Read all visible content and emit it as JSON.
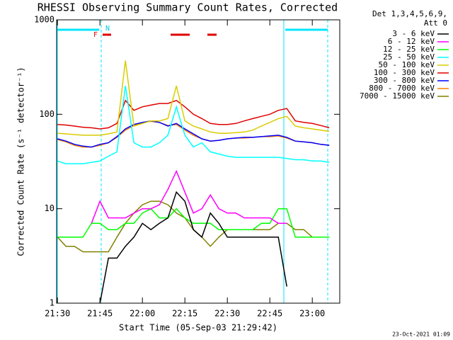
{
  "chart_data": {
    "type": "line",
    "title": "RHESSI Observing Summary Count Rates, Corrected",
    "x_label": "Start Time (05-Sep-03 21:29:42)",
    "y_label": "Corrected Count Rate (s⁻¹ detector⁻¹)",
    "legend_header": [
      "Det 1,3,4,5,6,9,",
      "Att 0"
    ],
    "annotations": [
      "N",
      "F"
    ],
    "timestamp": "23-Oct-2021 01:09",
    "log_y": true,
    "legend": "right",
    "xlim": [
      -0.3,
      99.7
    ],
    "xticks": [
      {
        "value": 0,
        "label": "21:30"
      },
      {
        "value": 15,
        "label": "21:45"
      },
      {
        "value": 30,
        "label": "22:00"
      },
      {
        "value": 45,
        "label": "22:15"
      },
      {
        "value": 60,
        "label": "22:30"
      },
      {
        "value": 75,
        "label": "22:45"
      },
      {
        "value": 90,
        "label": "23:00"
      }
    ],
    "ylim": [
      1,
      1000
    ],
    "yticks": [
      1,
      10,
      100,
      1000
    ],
    "x": [
      0,
      3,
      6,
      9,
      12,
      15,
      18,
      21,
      24,
      27,
      30,
      33,
      36,
      39,
      42,
      45,
      48,
      51,
      54,
      57,
      60,
      63,
      66,
      69,
      72,
      75,
      78,
      81,
      84,
      87,
      90,
      93,
      96
    ],
    "series": [
      {
        "name": "3 - 6 keV",
        "color": "#000000",
        "values": [
          null,
          null,
          null,
          null,
          null,
          1,
          3,
          3,
          4,
          5,
          7,
          6,
          7,
          8,
          15,
          12,
          6,
          5,
          9,
          7,
          5,
          5,
          5,
          5,
          5,
          5,
          5,
          1.5,
          null,
          null,
          null,
          null,
          null
        ]
      },
      {
        "name": "6 - 12 keV",
        "color": "#ff00ff",
        "values": [
          null,
          null,
          null,
          null,
          7,
          12,
          8,
          8,
          8,
          9,
          10,
          10,
          11,
          16,
          25,
          15,
          9,
          10,
          14,
          10,
          9,
          9,
          8,
          8,
          8,
          8,
          7,
          7,
          null,
          null,
          null,
          null,
          null
        ]
      },
      {
        "name": "12 - 25 keV",
        "color": "#00ff00",
        "values": [
          5,
          5,
          5,
          5,
          7,
          7,
          6,
          6,
          7,
          7,
          9,
          10,
          8,
          8,
          10,
          8,
          7,
          7,
          7,
          6,
          6,
          6,
          6,
          6,
          7,
          7,
          10,
          10,
          5,
          5,
          5,
          5,
          5
        ]
      },
      {
        "name": "25 - 50 keV",
        "color": "#00ffff",
        "values": [
          32,
          30,
          30,
          30,
          31,
          32,
          36,
          40,
          200,
          50,
          45,
          45,
          50,
          60,
          120,
          60,
          45,
          50,
          40,
          38,
          36,
          35,
          35,
          35,
          35,
          35,
          35,
          34,
          33,
          33,
          32,
          32,
          31
        ]
      },
      {
        "name": "50 - 100 keV",
        "color": "#d8cc00",
        "values": [
          63,
          62,
          61,
          60,
          60,
          60,
          62,
          65,
          370,
          75,
          80,
          85,
          85,
          90,
          200,
          85,
          75,
          70,
          65,
          63,
          63,
          64,
          65,
          68,
          75,
          82,
          90,
          95,
          75,
          72,
          70,
          68,
          66
        ]
      },
      {
        "name": "100 - 300 keV",
        "color": "#e00000",
        "values": [
          78,
          77,
          75,
          73,
          72,
          70,
          72,
          80,
          140,
          110,
          120,
          125,
          130,
          130,
          140,
          120,
          100,
          90,
          80,
          78,
          78,
          80,
          85,
          90,
          95,
          100,
          110,
          115,
          85,
          82,
          80,
          76,
          72
        ]
      },
      {
        "name": "300 - 800 keV",
        "color": "#0000ff",
        "values": [
          55,
          52,
          48,
          46,
          45,
          48,
          50,
          58,
          70,
          78,
          82,
          85,
          82,
          75,
          80,
          70,
          62,
          55,
          52,
          53,
          55,
          56,
          57,
          57,
          58,
          59,
          60,
          57,
          52,
          51,
          50,
          48,
          47
        ]
      },
      {
        "name": "800 - 7000 keV",
        "color": "#ff8000",
        "values": [
          54,
          51,
          47,
          45,
          45,
          47,
          50,
          57,
          68,
          76,
          82,
          84,
          82,
          76,
          78,
          68,
          60,
          55,
          52,
          53,
          55,
          56,
          56,
          57,
          58,
          58,
          59,
          56,
          52,
          51,
          50,
          48,
          47
        ]
      },
      {
        "name": "7000 - 15000 keV",
        "color": "#808000",
        "values": [
          5,
          4,
          4,
          3.5,
          3.5,
          3.5,
          3.5,
          5,
          7,
          9,
          11,
          12,
          12,
          11,
          9,
          8,
          6,
          5,
          4,
          5,
          6,
          6,
          6,
          6,
          6,
          6,
          7,
          7,
          6,
          6,
          5,
          5,
          5
        ]
      }
    ]
  }
}
